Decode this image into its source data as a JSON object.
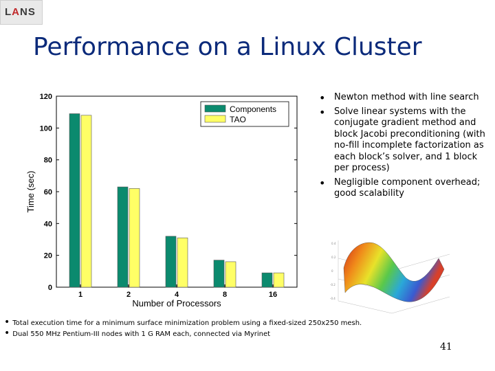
{
  "logo": {
    "prefix": "L",
    "accent": "A",
    "suffix": "NS"
  },
  "slide": {
    "title": "Performance on a Linux Cluster",
    "bullets": [
      "Newton method with line search",
      "Solve linear systems with the conjugate gradient method and block Jacobi preconditioning (with no-fill incomplete factorization as each block’s solver, and 1 block per process)",
      "Negligible component overhead; good scalability"
    ],
    "notes": [
      "Total execution time for a minimum surface minimization problem using a fixed-sized 250x250 mesh.",
      "Dual 550 MHz Pentium-III nodes with 1 G RAM each, connected via Myrinet"
    ],
    "page_number": "41"
  },
  "chart_data": {
    "type": "bar",
    "categories": [
      "1",
      "2",
      "4",
      "8",
      "16"
    ],
    "series": [
      {
        "name": "Components",
        "values": [
          109,
          63,
          32,
          17,
          9
        ],
        "color": "#0b8a6e"
      },
      {
        "name": "TAO",
        "values": [
          108,
          62,
          31,
          16,
          9
        ],
        "color": "#ffff66"
      }
    ],
    "title": "",
    "xlabel": "Number of Processors",
    "ylabel": "Time (sec)",
    "ylim": [
      0,
      120
    ],
    "yticks": [
      0,
      20,
      40,
      60,
      80,
      100,
      120
    ],
    "grid": false,
    "legend": "top-right"
  }
}
